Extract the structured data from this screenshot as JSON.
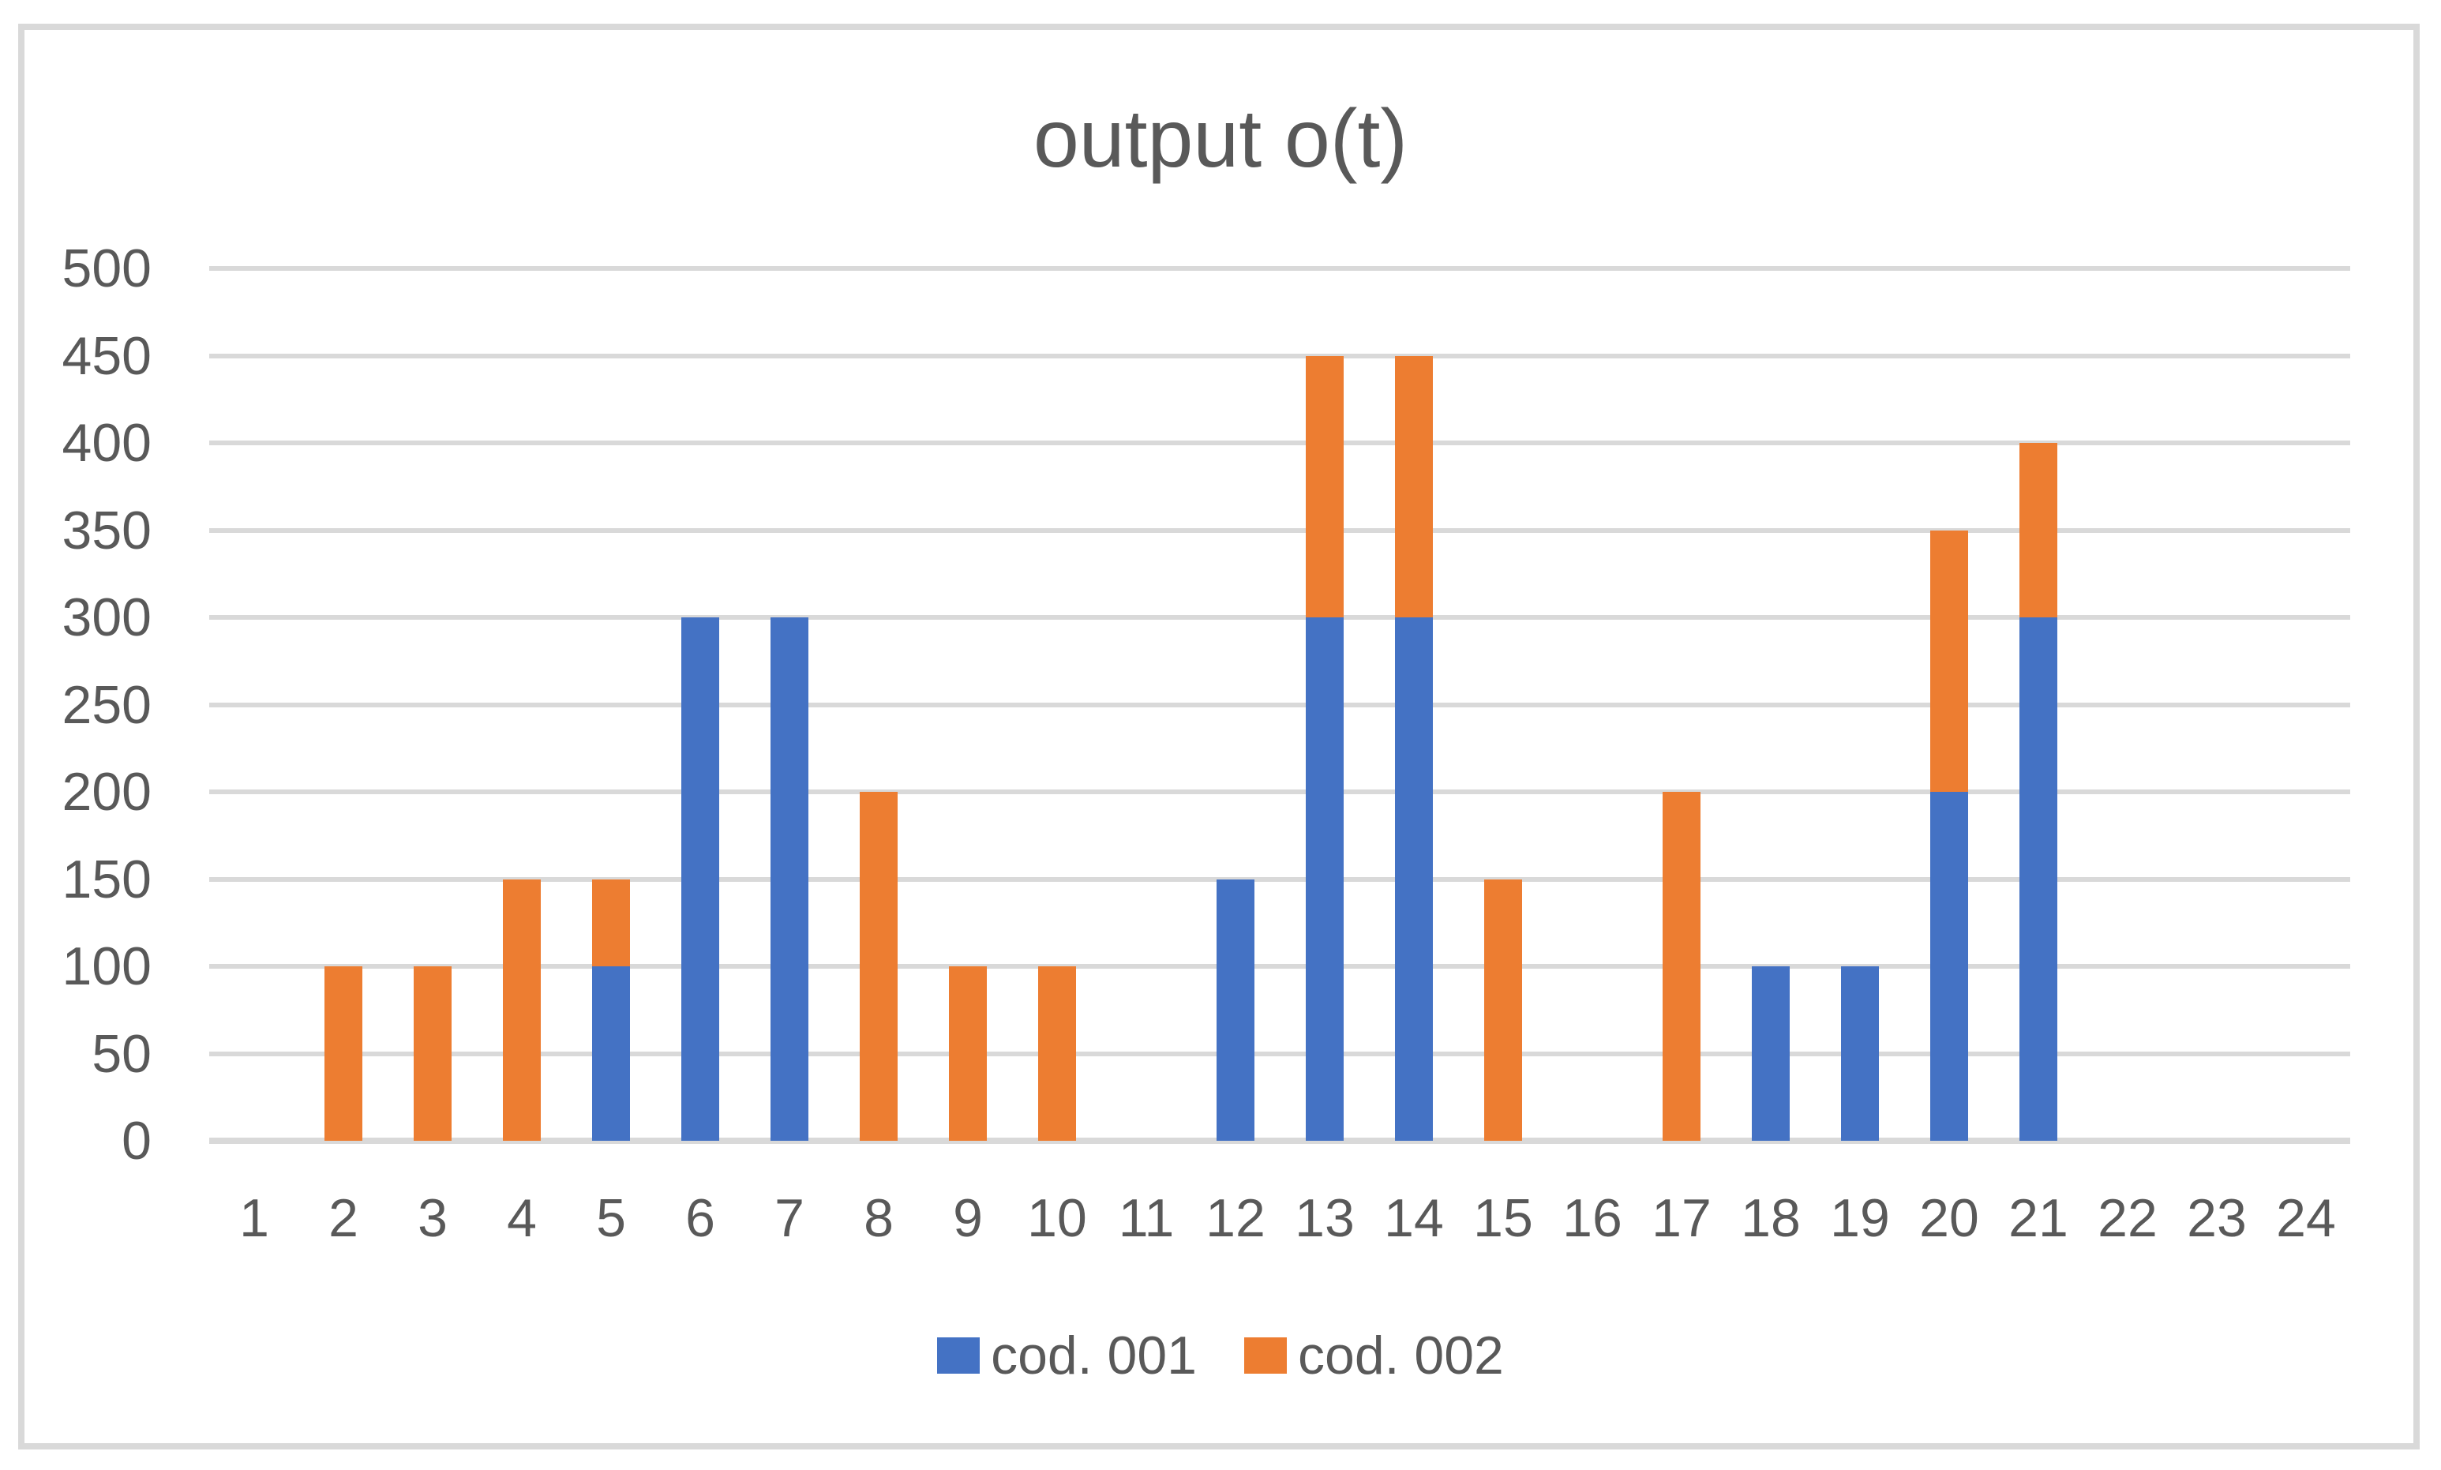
{
  "title": "output o(t)",
  "colors": {
    "series1": "#4472C4",
    "series2": "#ED7D31",
    "gridline": "#D9D9D9",
    "axis_text": "#595959",
    "frame_border": "#D9D9D9",
    "background": "#FFFFFF"
  },
  "chart_data": {
    "type": "bar",
    "stacked": true,
    "title": "output o(t)",
    "categories": [
      "1",
      "2",
      "3",
      "4",
      "5",
      "6",
      "7",
      "8",
      "9",
      "10",
      "11",
      "12",
      "13",
      "14",
      "15",
      "16",
      "17",
      "18",
      "19",
      "20",
      "21",
      "22",
      "23",
      "24"
    ],
    "series": [
      {
        "name": "cod. 001",
        "color": "#4472C4",
        "values": [
          0,
          0,
          0,
          0,
          100,
          300,
          300,
          0,
          0,
          0,
          0,
          150,
          300,
          300,
          0,
          0,
          0,
          100,
          100,
          200,
          300,
          0,
          0,
          0
        ]
      },
      {
        "name": "cod. 002",
        "color": "#ED7D31",
        "values": [
          0,
          100,
          100,
          150,
          50,
          0,
          0,
          200,
          100,
          100,
          0,
          0,
          150,
          150,
          150,
          0,
          200,
          0,
          0,
          150,
          100,
          0,
          0,
          0
        ]
      }
    ],
    "y_axis": {
      "min": 0,
      "max": 500,
      "step": 50,
      "tick_labels": [
        "0",
        "50",
        "100",
        "150",
        "200",
        "250",
        "300",
        "350",
        "400",
        "450",
        "500"
      ]
    },
    "x_axis": {
      "tick_labels": [
        "1",
        "2",
        "3",
        "4",
        "5",
        "6",
        "7",
        "8",
        "9",
        "10",
        "11",
        "12",
        "13",
        "14",
        "15",
        "16",
        "17",
        "18",
        "19",
        "20",
        "21",
        "22",
        "23",
        "24"
      ]
    },
    "grid": true,
    "legend_position": "bottom"
  },
  "legend": {
    "items": [
      {
        "label": "cod. 001",
        "color": "#4472C4"
      },
      {
        "label": "cod. 002",
        "color": "#ED7D31"
      }
    ]
  }
}
